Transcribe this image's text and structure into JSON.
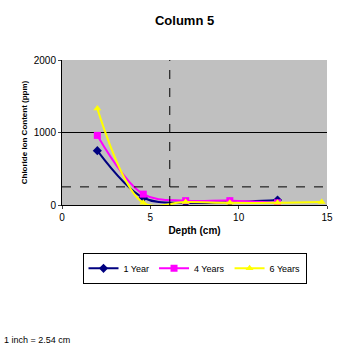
{
  "chart_data": {
    "type": "line",
    "title": "Column 5",
    "x_label": "Depth (cm)",
    "y_label": "Chloride Ion Content (ppm)",
    "xlim": [
      0,
      15
    ],
    "ylim": [
      0,
      2000
    ],
    "xticks": [
      0,
      5,
      10,
      15
    ],
    "yticks": [
      0,
      1000,
      2000
    ],
    "grid": true,
    "legend": "bottom",
    "series": [
      {
        "name": "1 Year",
        "color": "#000080",
        "marker": "diamond",
        "x": [
          2,
          4.6,
          7,
          9.5,
          12.2
        ],
        "values": [
          750,
          100,
          30,
          40,
          70
        ]
      },
      {
        "name": "4 Years",
        "color": "#ff00ff",
        "marker": "square",
        "x": [
          2,
          4.6,
          7,
          9.5,
          12.2
        ],
        "values": [
          960,
          150,
          60,
          60,
          30
        ]
      },
      {
        "name": "6 Years",
        "color": "#ffff00",
        "marker": "triangle",
        "x": [
          2,
          4.6,
          7,
          9.5,
          12.2,
          14.7
        ],
        "values": [
          1330,
          30,
          40,
          30,
          30,
          40
        ]
      }
    ],
    "reference_lines": [
      {
        "axis": "y",
        "value": 250,
        "line_style": "dashed"
      },
      {
        "axis": "x",
        "value": 6.1,
        "line_style": "dashed"
      }
    ],
    "annotations": [
      "1 inch = 2.54 cm"
    ]
  }
}
